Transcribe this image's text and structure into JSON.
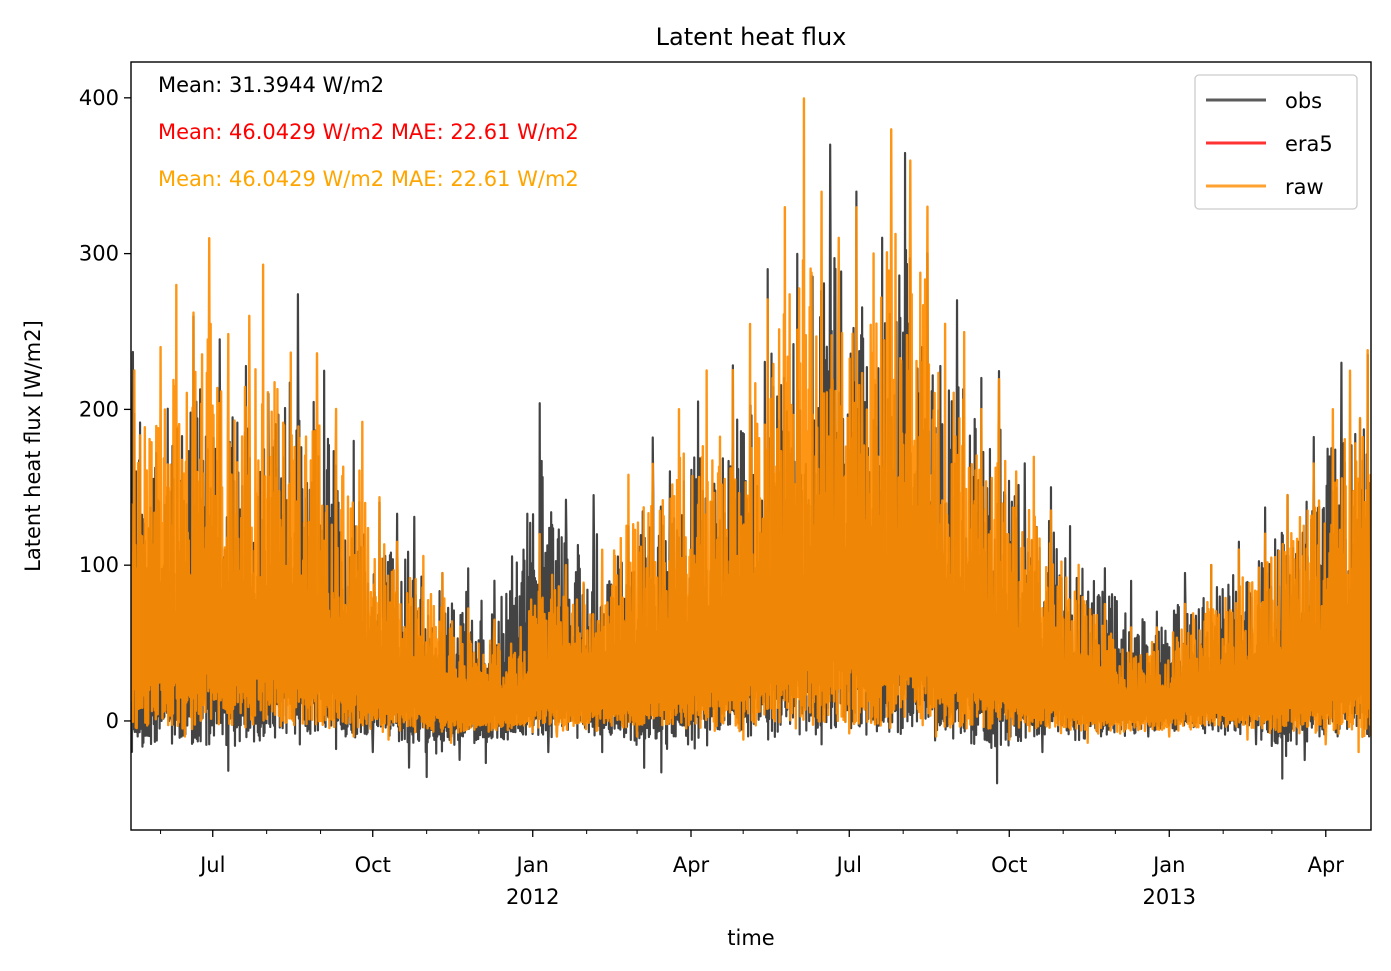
{
  "chart_data": {
    "type": "line",
    "title": "Latent heat flux",
    "xlabel": "time",
    "ylabel": "Latent heat flux [W/m2]",
    "x_range": [
      "2011-05-15",
      "2013-04-27"
    ],
    "ylim": [
      -70,
      423
    ],
    "y_ticks": [
      0,
      100,
      200,
      300,
      400
    ],
    "x_ticks": [
      {
        "date": "2011-07-01",
        "label": "Jul",
        "sublabel": ""
      },
      {
        "date": "2011-10-01",
        "label": "Oct",
        "sublabel": ""
      },
      {
        "date": "2012-01-01",
        "label": "Jan",
        "sublabel": "2012"
      },
      {
        "date": "2012-04-01",
        "label": "Apr",
        "sublabel": ""
      },
      {
        "date": "2012-07-01",
        "label": "Jul",
        "sublabel": ""
      },
      {
        "date": "2012-10-01",
        "label": "Oct",
        "sublabel": ""
      },
      {
        "date": "2013-01-01",
        "label": "Jan",
        "sublabel": "2013"
      },
      {
        "date": "2013-04-01",
        "label": "Apr",
        "sublabel": ""
      }
    ],
    "minor_ticks": [
      "2011-06-01",
      "2011-08-01",
      "2011-09-01",
      "2011-11-01",
      "2011-12-01",
      "2012-02-01",
      "2012-03-01",
      "2012-05-01",
      "2012-06-01",
      "2012-08-01",
      "2012-09-01",
      "2012-11-01",
      "2012-12-01",
      "2013-02-01",
      "2013-03-01"
    ],
    "grid": false,
    "legend_position": "top-right",
    "annotations": [
      {
        "text": "Mean: 31.3944 W/m2",
        "color": "#000000"
      },
      {
        "text": "Mean: 46.0429 W/m2 MAE: 22.61 W/m2",
        "color": "#ff0000"
      },
      {
        "text": "Mean: 46.0429 W/m2 MAE: 22.61 W/m2",
        "color": "#ffa500"
      }
    ],
    "series": [
      {
        "name": "obs",
        "color": "#333333",
        "peaks": [
          [
            "2011-05-16",
            237
          ],
          [
            "2011-06-05",
            200
          ],
          [
            "2011-06-20",
            260
          ],
          [
            "2011-07-05",
            245
          ],
          [
            "2011-07-20",
            228
          ],
          [
            "2011-08-02",
            210
          ],
          [
            "2011-08-19",
            274
          ],
          [
            "2011-09-03",
            225
          ],
          [
            "2011-09-20",
            180
          ],
          [
            "2011-10-05",
            140
          ],
          [
            "2011-10-15",
            133
          ],
          [
            "2011-10-25",
            131
          ],
          [
            "2011-11-10",
            95
          ],
          [
            "2011-11-25",
            98
          ],
          [
            "2011-12-10",
            90
          ],
          [
            "2011-12-20",
            105
          ],
          [
            "2012-01-05",
            204
          ],
          [
            "2012-01-20",
            142
          ],
          [
            "2012-02-05",
            145
          ],
          [
            "2012-02-25",
            125
          ],
          [
            "2012-03-10",
            182
          ],
          [
            "2012-03-20",
            160
          ],
          [
            "2012-04-05",
            205
          ],
          [
            "2012-04-25",
            228
          ],
          [
            "2012-05-15",
            290
          ],
          [
            "2012-06-01",
            300
          ],
          [
            "2012-06-10",
            285
          ],
          [
            "2012-06-20",
            370
          ],
          [
            "2012-07-05",
            340
          ],
          [
            "2012-07-20",
            310
          ],
          [
            "2012-08-02",
            365
          ],
          [
            "2012-08-15",
            300
          ],
          [
            "2012-09-01",
            270
          ],
          [
            "2012-09-15",
            220
          ],
          [
            "2012-09-25",
            225
          ],
          [
            "2012-10-10",
            165
          ],
          [
            "2012-10-25",
            150
          ],
          [
            "2012-11-05",
            125
          ],
          [
            "2012-11-25",
            98
          ],
          [
            "2012-12-10",
            90
          ],
          [
            "2012-12-25",
            70
          ],
          [
            "2013-01-10",
            95
          ],
          [
            "2013-01-25",
            100
          ],
          [
            "2013-02-10",
            115
          ],
          [
            "2013-02-25",
            137
          ],
          [
            "2013-03-10",
            145
          ],
          [
            "2013-03-25",
            182
          ],
          [
            "2013-04-10",
            230
          ],
          [
            "2013-04-25",
            235
          ]
        ],
        "troughs": [
          [
            "2011-07-10",
            -32
          ],
          [
            "2011-07-20",
            -30
          ],
          [
            "2011-08-20",
            -15
          ],
          [
            "2011-09-10",
            -18
          ],
          [
            "2011-10-01",
            -20
          ],
          [
            "2011-10-22",
            -30
          ],
          [
            "2011-11-01",
            -36
          ],
          [
            "2011-11-20",
            -25
          ],
          [
            "2011-12-05",
            -27
          ],
          [
            "2012-01-10",
            -20
          ],
          [
            "2012-02-10",
            -20
          ],
          [
            "2012-03-05",
            -30
          ],
          [
            "2012-03-15",
            -33
          ],
          [
            "2012-04-25",
            -20
          ],
          [
            "2012-06-15",
            -15
          ],
          [
            "2012-08-15",
            -20
          ],
          [
            "2012-09-01",
            -20
          ],
          [
            "2012-09-24",
            -40
          ],
          [
            "2012-10-20",
            -20
          ],
          [
            "2012-11-25",
            -20
          ],
          [
            "2012-12-20",
            -10
          ],
          [
            "2013-02-20",
            -15
          ],
          [
            "2013-03-07",
            -37
          ],
          [
            "2013-03-20",
            -25
          ],
          [
            "2013-04-10",
            -20
          ]
        ]
      },
      {
        "name": "era5",
        "color": "#ff0000",
        "peaks": [],
        "troughs": []
      },
      {
        "name": "raw",
        "color": "#ff8c00",
        "peaks": [
          [
            "2011-05-17",
            225
          ],
          [
            "2011-06-01",
            240
          ],
          [
            "2011-06-10",
            280
          ],
          [
            "2011-06-20",
            262
          ],
          [
            "2011-06-29",
            310
          ],
          [
            "2011-07-10",
            248
          ],
          [
            "2011-07-22",
            260
          ],
          [
            "2011-07-30",
            293
          ],
          [
            "2011-08-15",
            236
          ],
          [
            "2011-08-30",
            236
          ],
          [
            "2011-09-10",
            200
          ],
          [
            "2011-09-25",
            192
          ],
          [
            "2011-10-05",
            143
          ],
          [
            "2011-10-15",
            115
          ],
          [
            "2011-10-30",
            106
          ],
          [
            "2011-11-10",
            95
          ],
          [
            "2011-11-25",
            72
          ],
          [
            "2011-12-10",
            65
          ],
          [
            "2011-12-25",
            60
          ],
          [
            "2012-01-05",
            120
          ],
          [
            "2012-01-20",
            100
          ],
          [
            "2012-02-10",
            110
          ],
          [
            "2012-02-25",
            158
          ],
          [
            "2012-03-10",
            165
          ],
          [
            "2012-03-25",
            200
          ],
          [
            "2012-04-10",
            225
          ],
          [
            "2012-04-25",
            225
          ],
          [
            "2012-05-05",
            255
          ],
          [
            "2012-05-15",
            270
          ],
          [
            "2012-05-25",
            330
          ],
          [
            "2012-06-05",
            400
          ],
          [
            "2012-06-15",
            340
          ],
          [
            "2012-06-25",
            310
          ],
          [
            "2012-07-05",
            330
          ],
          [
            "2012-07-15",
            300
          ],
          [
            "2012-07-25",
            380
          ],
          [
            "2012-08-05",
            360
          ],
          [
            "2012-08-15",
            330
          ],
          [
            "2012-08-25",
            255
          ],
          [
            "2012-09-05",
            250
          ],
          [
            "2012-09-15",
            200
          ],
          [
            "2012-09-25",
            220
          ],
          [
            "2012-10-05",
            160
          ],
          [
            "2012-10-15",
            170
          ],
          [
            "2012-10-25",
            135
          ],
          [
            "2012-11-10",
            100
          ],
          [
            "2012-11-25",
            75
          ],
          [
            "2012-12-10",
            60
          ],
          [
            "2012-12-25",
            60
          ],
          [
            "2013-01-10",
            75
          ],
          [
            "2013-01-25",
            100
          ],
          [
            "2013-02-10",
            110
          ],
          [
            "2013-02-25",
            120
          ],
          [
            "2013-03-10",
            145
          ],
          [
            "2013-03-25",
            165
          ],
          [
            "2013-04-05",
            200
          ],
          [
            "2013-04-15",
            225
          ],
          [
            "2013-04-25",
            238
          ]
        ],
        "troughs": [
          [
            "2011-06-15",
            -10
          ],
          [
            "2011-08-15",
            -8
          ],
          [
            "2011-09-20",
            -10
          ],
          [
            "2011-10-10",
            -12
          ],
          [
            "2011-11-15",
            -14
          ],
          [
            "2012-01-15",
            -10
          ],
          [
            "2012-03-01",
            -10
          ],
          [
            "2012-05-01",
            -12
          ],
          [
            "2012-07-01",
            -8
          ],
          [
            "2012-08-20",
            -10
          ],
          [
            "2012-10-01",
            -12
          ],
          [
            "2012-11-15",
            -14
          ],
          [
            "2013-01-01",
            -10
          ],
          [
            "2013-02-15",
            -12
          ],
          [
            "2013-04-01",
            -15
          ],
          [
            "2013-04-20",
            -20
          ]
        ]
      }
    ]
  }
}
